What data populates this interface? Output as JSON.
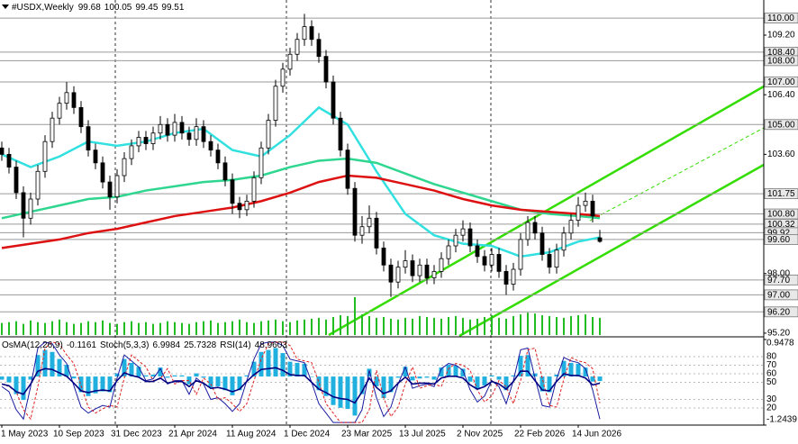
{
  "chart_data": [
    {
      "type": "candlestick",
      "title": "#USDX,Weekly",
      "categories": [
        "1 May 2023",
        null,
        null,
        null,
        null,
        null,
        null,
        null,
        "10 Sep 2023",
        null,
        null,
        null,
        null,
        null,
        null,
        null,
        "31 Dec 2023",
        null,
        null,
        null,
        null,
        null,
        null,
        null,
        "21 Apr 2024",
        null,
        null,
        null,
        null,
        null,
        null,
        null,
        "11 Aug 2024",
        null,
        null,
        null,
        null,
        null,
        null,
        null,
        "1 Dec 2024",
        null,
        null,
        null,
        null,
        null,
        null,
        null,
        "23 Mar 2025",
        null,
        null,
        null,
        null,
        null,
        null,
        null,
        "13 Jul 2025",
        null,
        null,
        null,
        null,
        null,
        null,
        null,
        "2 Nov 2025",
        null,
        null,
        null,
        null,
        null,
        null,
        null,
        "22 Feb 2026",
        null,
        null,
        null,
        null,
        null,
        null,
        null,
        "14 Jun 2026",
        null,
        null,
        null
      ],
      "open": [
        103.9,
        103.6,
        103.0,
        101.8,
        100.6,
        101.5,
        102.8,
        104.2,
        105.3,
        106.0,
        106.5,
        105.8,
        104.9,
        103.8,
        103.2,
        102.3,
        101.6,
        102.6,
        103.4,
        104.0,
        104.4,
        104.1,
        104.6,
        105.0,
        104.5,
        105.1,
        104.6,
        104.3,
        104.9,
        104.2,
        103.8,
        103.2,
        102.4,
        101.3,
        101.0,
        101.4,
        102.5,
        103.9,
        105.2,
        106.8,
        107.6,
        108.3,
        109.0,
        109.6,
        109.0,
        108.2,
        107.0,
        105.3,
        103.8,
        102.0,
        99.8,
        100.2,
        100.6,
        99.2,
        98.4,
        97.6,
        98.3,
        98.6,
        97.9,
        98.4,
        97.8,
        98.1,
        98.7,
        99.3,
        99.8,
        100.1,
        99.3,
        98.8,
        98.4,
        98.9,
        98.1,
        97.5,
        98.2,
        99.6,
        100.4,
        99.9,
        98.9,
        98.3,
        99.1,
        99.9,
        100.5,
        101.2,
        101.4,
        99.68
      ],
      "high": [
        104.2,
        103.9,
        103.3,
        102.1,
        101.8,
        103.1,
        104.5,
        105.6,
        106.3,
        107.0,
        106.8,
        106.1,
        105.2,
        104.1,
        103.5,
        102.6,
        102.9,
        103.7,
        104.3,
        104.7,
        104.7,
        104.9,
        105.4,
        105.3,
        105.5,
        105.4,
        104.9,
        105.3,
        105.2,
        104.5,
        104.1,
        103.5,
        102.7,
        101.6,
        101.7,
        102.8,
        104.2,
        105.5,
        107.1,
        107.9,
        108.6,
        109.3,
        110.2,
        109.9,
        109.3,
        108.5,
        107.3,
        105.6,
        104.1,
        102.3,
        100.7,
        101.2,
        100.9,
        99.5,
        98.7,
        98.6,
        99.1,
        98.9,
        98.7,
        98.7,
        98.4,
        99.0,
        99.6,
        100.1,
        100.5,
        100.4,
        99.6,
        99.1,
        99.2,
        99.2,
        98.4,
        98.5,
        99.9,
        100.7,
        100.7,
        100.2,
        99.2,
        99.4,
        100.2,
        100.8,
        101.6,
        101.8,
        101.7,
        100.05
      ],
      "low": [
        103.3,
        102.7,
        101.5,
        99.7,
        100.3,
        101.2,
        102.5,
        103.9,
        105.0,
        105.7,
        105.5,
        104.6,
        103.5,
        102.9,
        102.0,
        101.0,
        101.3,
        102.3,
        103.1,
        103.7,
        103.8,
        103.8,
        104.3,
        104.2,
        104.2,
        104.3,
        104.0,
        104.0,
        103.9,
        103.5,
        102.9,
        102.1,
        100.8,
        100.6,
        100.7,
        101.1,
        102.2,
        103.6,
        104.9,
        106.5,
        107.3,
        108.0,
        108.7,
        108.7,
        107.9,
        106.7,
        105.0,
        103.5,
        101.7,
        99.5,
        99.4,
        99.9,
        98.9,
        98.1,
        96.9,
        97.3,
        98.0,
        97.6,
        97.6,
        97.5,
        97.5,
        97.8,
        98.4,
        99.0,
        99.5,
        99.0,
        98.5,
        98.1,
        98.1,
        97.8,
        97.0,
        97.2,
        97.9,
        99.3,
        99.6,
        98.6,
        98.0,
        98.0,
        98.8,
        99.6,
        100.2,
        100.9,
        100.4,
        99.45
      ],
      "close": [
        103.6,
        103.0,
        101.8,
        100.6,
        101.5,
        102.8,
        104.2,
        105.3,
        106.0,
        106.5,
        105.8,
        104.9,
        103.8,
        103.2,
        102.3,
        101.6,
        102.6,
        103.4,
        104.0,
        104.4,
        104.1,
        104.6,
        105.0,
        104.5,
        105.1,
        104.6,
        104.3,
        104.9,
        104.2,
        103.8,
        103.2,
        102.4,
        101.3,
        101.0,
        101.4,
        102.5,
        103.9,
        105.2,
        106.8,
        107.6,
        108.3,
        109.0,
        109.6,
        109.0,
        108.2,
        107.0,
        105.3,
        103.8,
        102.0,
        99.8,
        100.2,
        100.6,
        99.2,
        98.4,
        97.6,
        98.3,
        98.6,
        97.9,
        98.4,
        97.8,
        98.1,
        98.7,
        99.3,
        99.8,
        100.1,
        99.3,
        98.8,
        98.4,
        98.9,
        98.1,
        97.5,
        98.2,
        99.6,
        100.4,
        99.9,
        98.9,
        98.3,
        99.1,
        99.9,
        100.5,
        101.2,
        101.4,
        100.7,
        99.51
      ],
      "color": "#000000",
      "volume": {
        "color": "#22bb22",
        "values": [
          14,
          15,
          16,
          13,
          17,
          15,
          14,
          16,
          18,
          15,
          13,
          14,
          16,
          15,
          17,
          14,
          13,
          15,
          16,
          14,
          15,
          13,
          14,
          16,
          15,
          14,
          13,
          15,
          16,
          17,
          14,
          15,
          16,
          18,
          15,
          14,
          16,
          17,
          18,
          16,
          15,
          17,
          18,
          19,
          20,
          18,
          21,
          23,
          22,
          44,
          24,
          22,
          20,
          21,
          19,
          18,
          20,
          19,
          22,
          21,
          20,
          19,
          21,
          22,
          20,
          18,
          19,
          21,
          23,
          20,
          19,
          22,
          24,
          26,
          25,
          23,
          22,
          21,
          20,
          22,
          23,
          24,
          21,
          20
        ]
      },
      "series": [
        {
          "color": "#33e0e0",
          "x": [
            0,
            4,
            8,
            12,
            16,
            20,
            24,
            28,
            32,
            36,
            40,
            44,
            48,
            52,
            56,
            60,
            64,
            68,
            72,
            76,
            80,
            83
          ],
          "values": [
            103.6,
            103.0,
            103.5,
            104.2,
            104.0,
            104.2,
            104.6,
            104.8,
            103.8,
            103.5,
            104.5,
            105.8,
            105.0,
            102.8,
            100.8,
            99.8,
            99.4,
            99.3,
            98.8,
            99.0,
            99.5,
            99.7
          ]
        },
        {
          "color": "#2fd68f",
          "x": [
            0,
            4,
            8,
            12,
            16,
            20,
            24,
            28,
            32,
            36,
            40,
            44,
            48,
            52,
            56,
            60,
            64,
            68,
            72,
            76,
            80,
            83
          ],
          "values": [
            100.6,
            100.9,
            101.2,
            101.5,
            101.6,
            101.9,
            102.1,
            102.3,
            102.4,
            102.6,
            103.0,
            103.3,
            103.4,
            103.2,
            102.7,
            102.2,
            101.8,
            101.4,
            101.0,
            100.8,
            100.7,
            100.6
          ]
        },
        {
          "color": "#dd1111",
          "x": [
            0,
            4,
            8,
            12,
            16,
            20,
            24,
            28,
            32,
            36,
            40,
            44,
            48,
            52,
            56,
            60,
            64,
            68,
            72,
            76,
            80,
            83
          ],
          "values": [
            99.2,
            99.4,
            99.6,
            99.9,
            100.1,
            100.4,
            100.7,
            100.9,
            101.1,
            101.4,
            101.8,
            102.3,
            102.6,
            102.5,
            102.2,
            101.9,
            101.5,
            101.2,
            101.0,
            100.9,
            100.8,
            100.7
          ]
        }
      ],
      "ylim": [
        95.07,
        110.85
      ],
      "yticks": [
        {
          "value": 109.2,
          "label": "109.20"
        },
        {
          "value": 106.4,
          "label": "106.40"
        },
        {
          "value": 103.6,
          "label": "103.60"
        },
        {
          "value": 98.0,
          "label": "98.00"
        },
        {
          "value": 95.2,
          "label": "95.20"
        }
      ],
      "levels": [
        {
          "value": 110.0,
          "label": "110.00"
        },
        {
          "value": 108.4,
          "label": "108.40"
        },
        {
          "value": 108.0,
          "label": "108.00"
        },
        {
          "value": 107.0,
          "label": "107.00"
        },
        {
          "value": 105.0,
          "label": "105.00"
        },
        {
          "value": 101.75,
          "label": "101.75"
        },
        {
          "value": 100.8,
          "label": "100.80"
        },
        {
          "value": 100.32,
          "label": "100.32"
        },
        {
          "value": 99.92,
          "label": "99.92"
        },
        {
          "value": 99.6,
          "label": "99.60"
        },
        {
          "value": 97.7,
          "label": "97.70"
        },
        {
          "value": 97.0,
          "label": "97.00"
        },
        {
          "value": 96.2,
          "label": "96.20"
        }
      ]
    },
    {
      "type": "oscillator",
      "series": [
        {
          "name": "OsMA(12,26,9)",
          "kind": "histogram",
          "color": "#1fb0e0",
          "values": [
            -0.08,
            -0.15,
            -0.45,
            -0.6,
            -0.08,
            0.55,
            0.68,
            0.63,
            0.45,
            0.3,
            -0.05,
            -0.4,
            -0.5,
            -0.43,
            -0.38,
            -0.4,
            0.08,
            0.45,
            0.35,
            0.25,
            0.03,
            0.05,
            0.23,
            -0.03,
            0.03,
            0.03,
            -0.2,
            0.08,
            -0.03,
            -0.28,
            -0.25,
            -0.35,
            -0.48,
            -0.35,
            0.03,
            0.38,
            0.63,
            0.68,
            0.73,
            0.6,
            0.38,
            0.35,
            0.33,
            0,
            -0.35,
            -0.5,
            -0.73,
            -0.8,
            -0.83,
            -1.0,
            -0.45,
            0.2,
            -0.25,
            -0.55,
            -0.4,
            -0.03,
            0.25,
            -0.1,
            -0.05,
            -0.03,
            -0.08,
            0.23,
            0.3,
            0.28,
            0.2,
            -0.13,
            -0.33,
            -0.23,
            0.03,
            -0.08,
            -0.35,
            0.03,
            0.53,
            0.55,
            0.08,
            -0.38,
            -0.4,
            0.05,
            0.4,
            0.35,
            0.33,
            0.23,
            -0.13,
            -0.1161
          ]
        },
        {
          "name": "Stoch(5,3,3)",
          "axis": "y2",
          "color": "#1a1aa0",
          "values": [
            45,
            39,
            18,
            7,
            45,
            90,
            97,
            95,
            82,
            72,
            46,
            21,
            14,
            19,
            23,
            21,
            55,
            82,
            75,
            68,
            52,
            54,
            66,
            48,
            52,
            52,
            36,
            55,
            48,
            30,
            32,
            25,
            16,
            25,
            52,
            77,
            95,
            97,
            97,
            93,
            77,
            75,
            73,
            50,
            25,
            14,
            3,
            3,
            3,
            3,
            18,
            64,
            32,
            10,
            21,
            48,
            68,
            43,
            46,
            48,
            45,
            66,
            72,
            70,
            64,
            41,
            27,
            34,
            52,
            45,
            25,
            52,
            88,
            90,
            55,
            23,
            21,
            54,
            79,
            75,
            73,
            66,
            41,
            6.9984
          ]
        },
        {
          "axis": "y2",
          "color": "#e02020",
          "dashed": true,
          "values": [
            48,
            45,
            39,
            18,
            7,
            45,
            90,
            97,
            95,
            82,
            72,
            46,
            21,
            14,
            19,
            23,
            21,
            55,
            82,
            75,
            68,
            52,
            54,
            66,
            48,
            52,
            52,
            36,
            55,
            48,
            30,
            32,
            25,
            16,
            25,
            52,
            77,
            95,
            97,
            97,
            93,
            77,
            75,
            73,
            50,
            25,
            14,
            3,
            3,
            3,
            3,
            18,
            64,
            32,
            10,
            21,
            48,
            68,
            43,
            46,
            48,
            45,
            66,
            72,
            70,
            64,
            41,
            27,
            34,
            52,
            45,
            25,
            52,
            88,
            90,
            55,
            23,
            21,
            54,
            79,
            75,
            73,
            66,
            25.7328
          ]
        },
        {
          "name": "RSI(14)",
          "axis": "y2",
          "color": "#000080",
          "values": [
            48,
            46,
            39,
            36,
            48,
            63,
            66,
            65,
            61,
            57,
            49,
            40,
            38,
            40,
            41,
            40,
            52,
            61,
            58,
            56,
            51,
            51,
            55,
            49,
            51,
            51,
            45,
            52,
            49,
            43,
            44,
            42,
            39,
            42,
            51,
            59,
            65,
            66,
            67,
            64,
            59,
            58,
            58,
            50,
            42,
            38,
            33,
            31,
            30,
            26,
            39,
            55,
            44,
            37,
            40,
            49,
            56,
            48,
            49,
            49,
            48,
            55,
            57,
            57,
            55,
            47,
            42,
            45,
            51,
            48,
            42,
            51,
            63,
            63,
            52,
            41,
            40,
            51,
            60,
            58,
            58,
            55,
            47,
            48.9603
          ]
        }
      ],
      "ylim": [
        -1.2439,
        0.9478
      ],
      "yticks": [
        0.9478,
        -1.2439
      ],
      "y2lim": [
        0,
        100
      ],
      "y2ticks": [
        80,
        70,
        60,
        50,
        30,
        20
      ]
    }
  ]
}
